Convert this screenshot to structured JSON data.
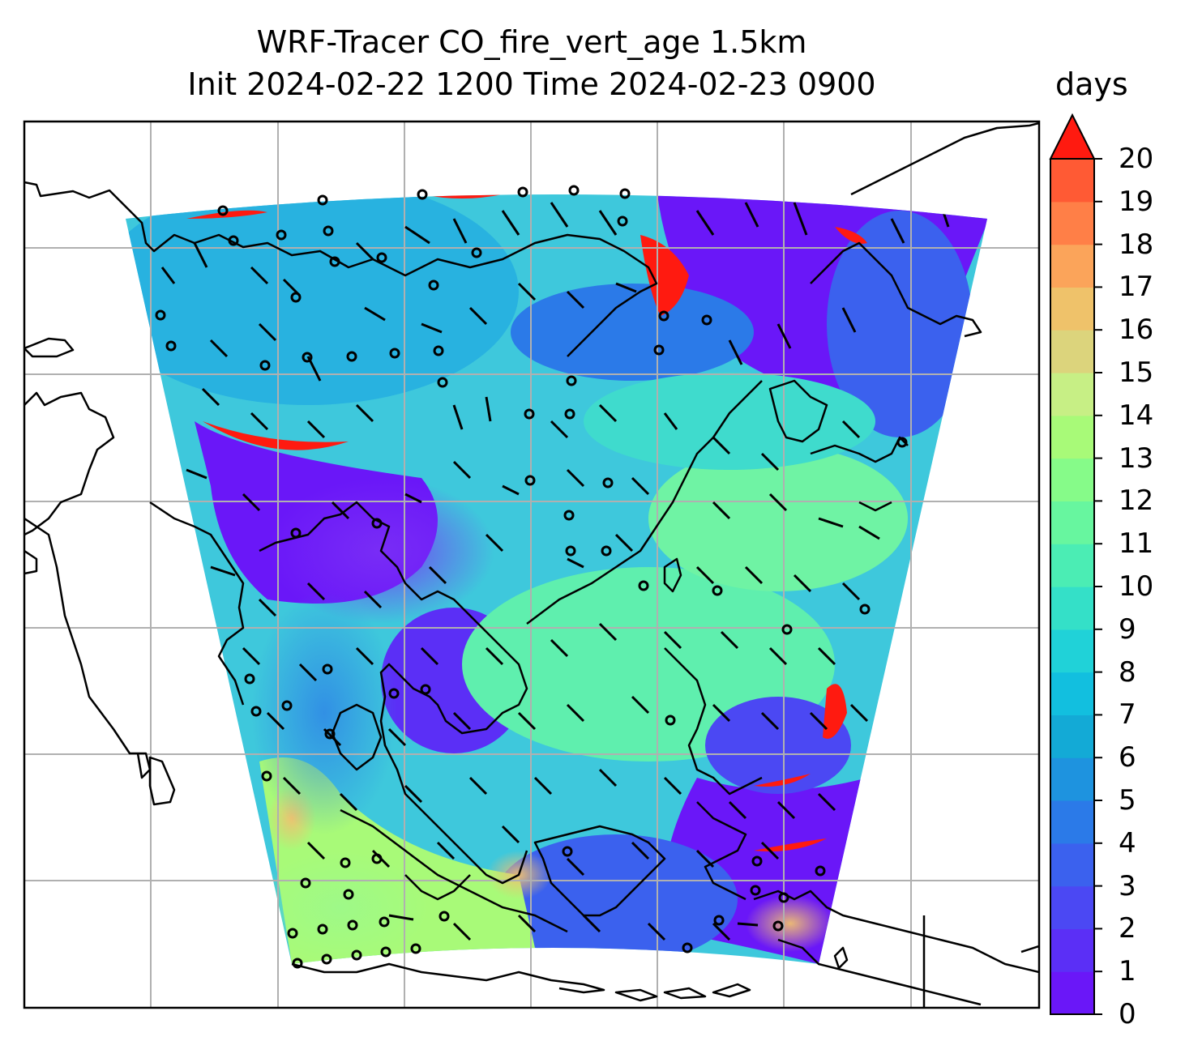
{
  "title": {
    "line1": "WRF-Tracer CO_fire_vert_age 1.5km",
    "line2": "Init 2024-02-22 1200 Time 2024-02-23 0900"
  },
  "colorbar": {
    "label": "days",
    "ticks": [
      "0",
      "1",
      "2",
      "3",
      "4",
      "5",
      "6",
      "7",
      "8",
      "9",
      "10",
      "11",
      "12",
      "13",
      "14",
      "15",
      "16",
      "17",
      "18",
      "19",
      "20"
    ],
    "extend": "max",
    "colors": [
      "#6a17f8",
      "#5b2ff6",
      "#4b48f3",
      "#3b61ee",
      "#2b7ae8",
      "#1e93df",
      "#13aad6",
      "#12bfdf",
      "#20d2d8",
      "#34e0c8",
      "#4bedb4",
      "#67f69f",
      "#86fb89",
      "#a8fa78",
      "#c7ef85",
      "#dcd47c",
      "#efc26a",
      "#fba45a",
      "#ff7f47",
      "#ff5a34",
      "#ff1a10"
    ]
  },
  "map": {
    "gridlines": true,
    "coastlines": true,
    "field": "CO_fire_vert_age",
    "level": "1.5km",
    "units": "days"
  }
}
